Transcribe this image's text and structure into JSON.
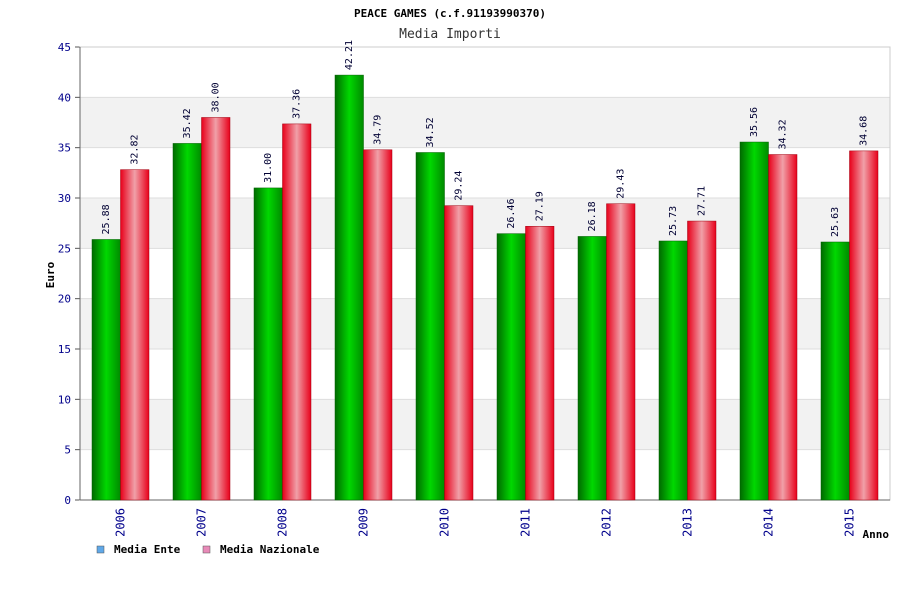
{
  "chart_data": {
    "type": "bar",
    "title": "PEACE GAMES (c.f.91193990370)",
    "subtitle": "Media Importi",
    "xlabel": "Anno",
    "ylabel": "Euro",
    "ylim": [
      0,
      45
    ],
    "yticks": [
      0,
      5,
      10,
      15,
      20,
      25,
      30,
      35,
      40,
      45
    ],
    "categories": [
      "2006",
      "2007",
      "2008",
      "2009",
      "2010",
      "2011",
      "2012",
      "2013",
      "2014",
      "2015"
    ],
    "series": [
      {
        "name": "Media Ente",
        "values": [
          25.88,
          35.42,
          31.0,
          42.21,
          34.52,
          26.46,
          26.18,
          25.73,
          35.56,
          25.63
        ],
        "labels": [
          "25.88",
          "35.42",
          "31.00",
          "42.21",
          "34.52",
          "26.46",
          "26.18",
          "25.73",
          "35.56",
          "25.63"
        ],
        "color": "#00a000",
        "legend_color": "#5fa8e8"
      },
      {
        "name": "Media Nazionale",
        "values": [
          32.82,
          38.0,
          37.36,
          34.79,
          29.24,
          27.19,
          29.43,
          27.71,
          34.32,
          34.68
        ],
        "labels": [
          "32.82",
          "38.00",
          "37.36",
          "34.79",
          "29.24",
          "27.19",
          "29.43",
          "27.71",
          "34.32",
          "34.68"
        ],
        "color": "#e8001a",
        "legend_color": "#e88ab8"
      }
    ],
    "grid": true,
    "legend_position": "bottom-left"
  }
}
